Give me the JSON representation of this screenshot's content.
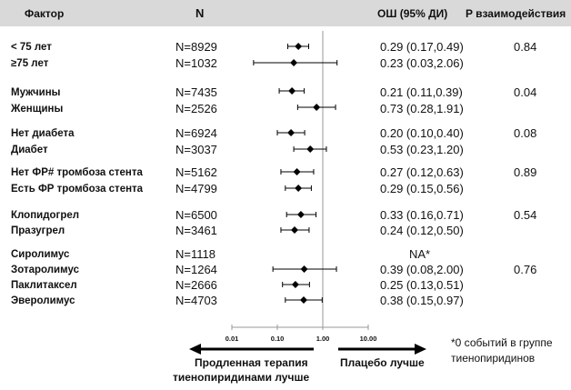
{
  "header": {
    "factor": "Фактор",
    "n": "N",
    "or": "ОШ (95% ДИ)",
    "p_interaction": "P взаимодействия"
  },
  "chart_data": {
    "type": "forest",
    "x_scale": "log",
    "xlim": [
      0.01,
      10
    ],
    "x_ticks": [
      "0.01",
      "0.10",
      "1.00",
      "10.00"
    ],
    "reference_line": 1.0,
    "rows": [
      {
        "label": "< 75 лет",
        "n": "N=8929",
        "or_text": "0.29 (0.17,0.49)",
        "or": 0.29,
        "lo": 0.17,
        "hi": 0.49,
        "p": "0.84"
      },
      {
        "label": "≥75 лет",
        "n": "N=1032",
        "or_text": "0.23 (0.03,2.06)",
        "or": 0.23,
        "lo": 0.03,
        "hi": 2.06,
        "p": ""
      },
      {
        "label": "Мужчины",
        "n": "N=7435",
        "or_text": "0.21 (0.11,0.39)",
        "or": 0.21,
        "lo": 0.11,
        "hi": 0.39,
        "p": "0.04"
      },
      {
        "label": "Женщины",
        "n": "N=2526",
        "or_text": "0.73 (0.28,1.91)",
        "or": 0.73,
        "lo": 0.28,
        "hi": 1.91,
        "p": ""
      },
      {
        "label": "Нет диабета",
        "n": "N=6924",
        "or_text": "0.20 (0.10,0.40)",
        "or": 0.2,
        "lo": 0.1,
        "hi": 0.4,
        "p": "0.08"
      },
      {
        "label": "Диабет",
        "n": "N=3037",
        "or_text": "0.53 (0.23,1.20)",
        "or": 0.53,
        "lo": 0.23,
        "hi": 1.2,
        "p": ""
      },
      {
        "label": "Нет ФР# тромбоза стента",
        "n": "N=5162",
        "or_text": "0.27 (0.12,0.63)",
        "or": 0.27,
        "lo": 0.12,
        "hi": 0.63,
        "p": "0.89"
      },
      {
        "label": "Есть ФР тромбоза стента",
        "n": "N=4799",
        "or_text": "0.29 (0.15,0.56)",
        "or": 0.29,
        "lo": 0.15,
        "hi": 0.56,
        "p": ""
      },
      {
        "label": "Клопидогрел",
        "n": "N=6500",
        "or_text": "0.33 (0.16,0.71)",
        "or": 0.33,
        "lo": 0.16,
        "hi": 0.71,
        "p": "0.54"
      },
      {
        "label": "Празугрел",
        "n": "N=3461",
        "or_text": "0.24 (0.12,0.50)",
        "or": 0.24,
        "lo": 0.12,
        "hi": 0.5,
        "p": ""
      },
      {
        "label": "Сиролимус",
        "n": "N=1118",
        "or_text": "NA*",
        "or": null,
        "lo": null,
        "hi": null,
        "p": ""
      },
      {
        "label": "Зотаролимус",
        "n": "N=1264",
        "or_text": "0.39 (0.08,2.00)",
        "or": 0.39,
        "lo": 0.08,
        "hi": 2.0,
        "p": "0.76"
      },
      {
        "label": "Паклитаксел",
        "n": "N=2666",
        "or_text": "0.25 (0.13,0.51)",
        "or": 0.25,
        "lo": 0.13,
        "hi": 0.51,
        "p": ""
      },
      {
        "label": "Эверолимус",
        "n": "N=4703",
        "or_text": "0.38 (0.15,0.97)",
        "or": 0.38,
        "lo": 0.15,
        "hi": 0.97,
        "p": ""
      }
    ],
    "left_direction_label": [
      "Продленная терапия",
      "тиенопиридинами лучше"
    ],
    "right_direction_label": "Плацебо лучше",
    "footnote": [
      "*0 событий в группе",
      "тиенопиридинов"
    ]
  }
}
